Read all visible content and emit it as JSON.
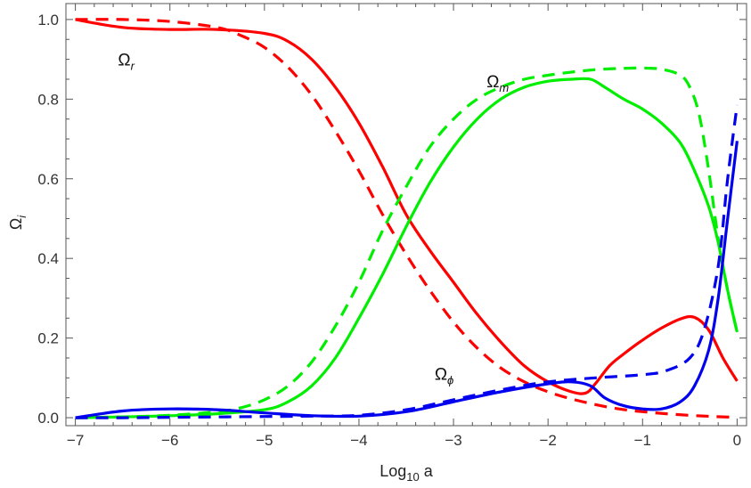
{
  "chart_data": {
    "type": "line",
    "title": "",
    "xlabel": {
      "main": "Log",
      "sub": "10",
      "tail": " a"
    },
    "ylabel": {
      "main": "Ω",
      "sub": "i"
    },
    "xlim": [
      -7.1,
      0.1
    ],
    "ylim": [
      -0.02,
      1.04
    ],
    "xticks": [
      -7,
      -6,
      -5,
      -4,
      -3,
      -2,
      -1,
      0
    ],
    "xtick_labels": [
      "−7",
      "−6",
      "−5",
      "−4",
      "−3",
      "−2",
      "−1",
      "0"
    ],
    "yticks": [
      0.0,
      0.2,
      0.4,
      0.6,
      0.8,
      1.0
    ],
    "ytick_labels": [
      "0.0",
      "0.2",
      "0.4",
      "0.6",
      "0.8",
      "1.0"
    ],
    "grid": false,
    "annotations": [
      {
        "main": "Ω",
        "sub": "r",
        "x": -6.55,
        "y": 0.885
      },
      {
        "main": "Ω",
        "sub": "m",
        "x": -2.65,
        "y": 0.83
      },
      {
        "main": "Ω",
        "sub": "ϕ",
        "x": -3.2,
        "y": 0.095
      }
    ],
    "series": [
      {
        "color": "#ff0000",
        "dash": false,
        "x": [
          -7.0,
          -6.5,
          -6.0,
          -5.5,
          -5.0,
          -4.75,
          -4.5,
          -4.25,
          -4.0,
          -3.75,
          -3.5,
          -3.25,
          -3.0,
          -2.75,
          -2.5,
          -2.25,
          -2.0,
          -1.75,
          -1.6,
          -1.5,
          -1.35,
          -1.2,
          -1.0,
          -0.8,
          -0.6,
          -0.45,
          -0.3,
          -0.15,
          0.0
        ],
        "y": [
          1.0,
          0.98,
          0.975,
          0.975,
          0.965,
          0.945,
          0.9,
          0.83,
          0.74,
          0.63,
          0.51,
          0.42,
          0.34,
          0.26,
          0.19,
          0.13,
          0.09,
          0.065,
          0.062,
          0.085,
          0.13,
          0.16,
          0.195,
          0.225,
          0.248,
          0.252,
          0.22,
          0.15,
          0.092
        ]
      },
      {
        "color": "#ff0000",
        "dash": true,
        "x": [
          -7.0,
          -6.5,
          -6.0,
          -5.5,
          -5.25,
          -5.0,
          -4.75,
          -4.5,
          -4.25,
          -4.0,
          -3.75,
          -3.5,
          -3.25,
          -3.0,
          -2.75,
          -2.5,
          -2.25,
          -2.0,
          -1.75,
          -1.5,
          -1.25,
          -1.0,
          -0.75,
          -0.5,
          -0.25,
          0.0
        ],
        "y": [
          1.0,
          1.0,
          0.995,
          0.98,
          0.96,
          0.93,
          0.88,
          0.81,
          0.72,
          0.62,
          0.51,
          0.41,
          0.32,
          0.24,
          0.175,
          0.125,
          0.09,
          0.065,
          0.047,
          0.033,
          0.022,
          0.015,
          0.01,
          0.006,
          0.003,
          0.001
        ]
      },
      {
        "color": "#00ee00",
        "dash": false,
        "x": [
          -7.0,
          -6.5,
          -6.0,
          -5.5,
          -5.0,
          -4.75,
          -4.5,
          -4.25,
          -4.0,
          -3.75,
          -3.5,
          -3.25,
          -3.0,
          -2.75,
          -2.5,
          -2.25,
          -2.0,
          -1.75,
          -1.55,
          -1.4,
          -1.2,
          -1.0,
          -0.8,
          -0.6,
          -0.45,
          -0.3,
          -0.2,
          -0.1,
          0.0
        ],
        "y": [
          0.0,
          0.002,
          0.005,
          0.01,
          0.02,
          0.04,
          0.08,
          0.15,
          0.25,
          0.36,
          0.48,
          0.59,
          0.68,
          0.75,
          0.8,
          0.83,
          0.845,
          0.85,
          0.85,
          0.83,
          0.8,
          0.775,
          0.74,
          0.69,
          0.62,
          0.53,
          0.44,
          0.32,
          0.215
        ]
      },
      {
        "color": "#00ee00",
        "dash": true,
        "x": [
          -7.0,
          -6.5,
          -6.0,
          -5.5,
          -5.25,
          -5.0,
          -4.75,
          -4.5,
          -4.25,
          -4.0,
          -3.75,
          -3.5,
          -3.25,
          -3.0,
          -2.75,
          -2.5,
          -2.25,
          -2.0,
          -1.75,
          -1.5,
          -1.25,
          -1.0,
          -0.8,
          -0.6,
          -0.5,
          -0.4,
          -0.3,
          -0.2,
          -0.1,
          0.0
        ],
        "y": [
          0.0,
          0.002,
          0.006,
          0.015,
          0.025,
          0.045,
          0.08,
          0.14,
          0.23,
          0.34,
          0.47,
          0.58,
          0.68,
          0.75,
          0.8,
          0.83,
          0.85,
          0.86,
          0.868,
          0.874,
          0.877,
          0.878,
          0.875,
          0.86,
          0.83,
          0.76,
          0.62,
          0.45,
          0.32,
          0.215
        ]
      },
      {
        "color": "#0000ee",
        "dash": false,
        "x": [
          -7.0,
          -6.5,
          -6.0,
          -5.5,
          -5.0,
          -4.5,
          -4.0,
          -3.5,
          -3.0,
          -2.5,
          -2.0,
          -1.75,
          -1.55,
          -1.4,
          -1.2,
          -1.0,
          -0.8,
          -0.6,
          -0.45,
          -0.3,
          -0.2,
          -0.1,
          0.0
        ],
        "y": [
          0.0,
          0.017,
          0.022,
          0.02,
          0.012,
          0.005,
          0.004,
          0.015,
          0.04,
          0.065,
          0.085,
          0.09,
          0.08,
          0.05,
          0.03,
          0.022,
          0.022,
          0.04,
          0.08,
          0.17,
          0.3,
          0.5,
          0.695
        ]
      },
      {
        "color": "#0000ee",
        "dash": true,
        "x": [
          -7.0,
          -6.5,
          -6.0,
          -5.5,
          -5.0,
          -4.5,
          -4.0,
          -3.5,
          -3.0,
          -2.5,
          -2.0,
          -1.5,
          -1.0,
          -0.75,
          -0.5,
          -0.35,
          -0.2,
          -0.1,
          0.0
        ],
        "y": [
          0.0,
          0.0,
          0.001,
          0.002,
          0.003,
          0.004,
          0.006,
          0.02,
          0.045,
          0.07,
          0.09,
          0.1,
          0.108,
          0.118,
          0.15,
          0.22,
          0.38,
          0.6,
          0.785
        ]
      }
    ]
  }
}
